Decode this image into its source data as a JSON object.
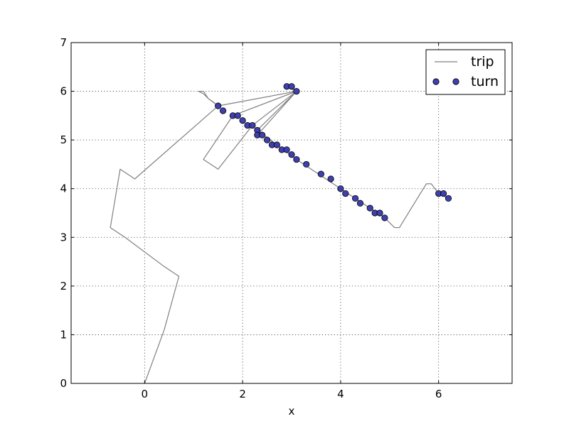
{
  "chart_data": {
    "type": "line",
    "title": "",
    "xlabel": "x",
    "ylabel": "",
    "xlim": [
      -1.5,
      7.5
    ],
    "ylim": [
      0,
      7
    ],
    "x_ticks": [
      0,
      2,
      4,
      6
    ],
    "x_tick_labels": [
      "0",
      "2",
      "4",
      "6"
    ],
    "y_ticks": [
      0,
      1,
      2,
      3,
      4,
      5,
      6,
      7
    ],
    "y_tick_labels": [
      "0",
      "1",
      "2",
      "3",
      "4",
      "5",
      "6",
      "7"
    ],
    "grid": true,
    "legend_position": "top-right",
    "series": [
      {
        "name": "trip",
        "kind": "line",
        "color": "#808080",
        "points": [
          [
            0,
            0
          ],
          [
            0.4,
            1.1
          ],
          [
            0.7,
            2.2
          ],
          [
            0.4,
            2.4
          ],
          [
            -0.4,
            3.0
          ],
          [
            -0.7,
            3.2
          ],
          [
            -0.5,
            4.4
          ],
          [
            -0.2,
            4.2
          ],
          [
            1.5,
            5.7
          ],
          [
            1.3,
            5.85
          ],
          [
            1.2,
            6.0
          ],
          [
            1.1,
            6.0
          ],
          [
            1.2,
            5.95
          ],
          [
            1.3,
            5.85
          ],
          [
            1.4,
            5.78
          ],
          [
            1.5,
            5.7
          ],
          [
            3.1,
            6.0
          ],
          [
            2.2,
            5.3
          ],
          [
            1.5,
            4.4
          ],
          [
            1.35,
            4.5
          ],
          [
            1.2,
            4.6
          ],
          [
            1.8,
            5.5
          ],
          [
            3.1,
            6.0
          ],
          [
            2.3,
            5.1
          ],
          [
            3.1,
            6.0
          ],
          [
            2.9,
            6.1
          ],
          [
            3.0,
            6.1
          ],
          [
            3.1,
            6.0
          ],
          [
            2.3,
            5.2
          ],
          [
            3.1,
            4.6
          ],
          [
            4.0,
            4.0
          ],
          [
            4.9,
            3.4
          ],
          [
            5.1,
            3.2
          ],
          [
            5.2,
            3.2
          ],
          [
            5.75,
            4.1
          ],
          [
            5.85,
            4.1
          ],
          [
            6.0,
            3.9
          ],
          [
            6.2,
            3.8
          ]
        ]
      },
      {
        "name": "turn",
        "kind": "scatter",
        "color": "#3f3fb0",
        "points": [
          [
            1.5,
            5.7
          ],
          [
            1.6,
            5.6
          ],
          [
            1.8,
            5.5
          ],
          [
            1.9,
            5.5
          ],
          [
            2.0,
            5.4
          ],
          [
            2.1,
            5.3
          ],
          [
            2.2,
            5.3
          ],
          [
            2.3,
            5.2
          ],
          [
            2.3,
            5.1
          ],
          [
            2.4,
            5.1
          ],
          [
            2.5,
            5.0
          ],
          [
            2.6,
            4.9
          ],
          [
            2.7,
            4.9
          ],
          [
            2.8,
            4.8
          ],
          [
            2.9,
            4.8
          ],
          [
            3.0,
            4.7
          ],
          [
            3.1,
            4.6
          ],
          [
            3.3,
            4.5
          ],
          [
            3.6,
            4.3
          ],
          [
            3.8,
            4.2
          ],
          [
            4.0,
            4.0
          ],
          [
            4.1,
            3.9
          ],
          [
            4.3,
            3.8
          ],
          [
            4.4,
            3.7
          ],
          [
            4.6,
            3.6
          ],
          [
            4.7,
            3.5
          ],
          [
            4.8,
            3.5
          ],
          [
            4.9,
            3.4
          ],
          [
            2.9,
            6.1
          ],
          [
            3.0,
            6.1
          ],
          [
            3.1,
            6.0
          ],
          [
            6.0,
            3.9
          ],
          [
            6.1,
            3.9
          ],
          [
            6.2,
            3.8
          ]
        ]
      }
    ]
  }
}
